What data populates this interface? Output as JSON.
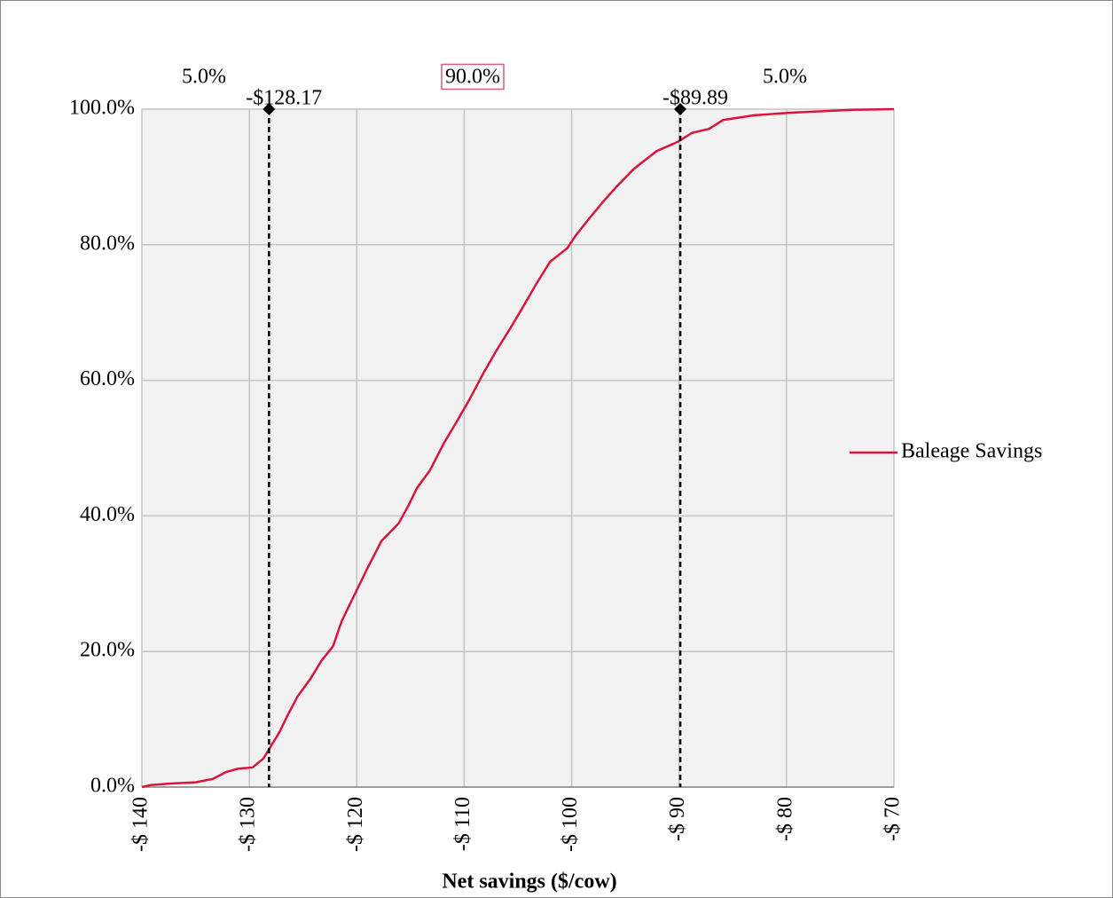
{
  "chart_data": {
    "type": "line",
    "xlabel": "Net savings ($/cow)",
    "xlim": [
      -140,
      -70
    ],
    "xticks": [
      {
        "value": -140,
        "label": "-$ 140"
      },
      {
        "value": -130,
        "label": "-$ 130"
      },
      {
        "value": -120,
        "label": "-$ 120"
      },
      {
        "value": -110,
        "label": "-$ 110"
      },
      {
        "value": -100,
        "label": "-$ 100"
      },
      {
        "value": -90,
        "label": "-$ 90"
      },
      {
        "value": -80,
        "label": "-$ 80"
      },
      {
        "value": -70,
        "label": "-$ 70"
      }
    ],
    "ylim": [
      0,
      100
    ],
    "yticks": [
      {
        "value": 0,
        "label": "0.0%"
      },
      {
        "value": 20,
        "label": "20.0%"
      },
      {
        "value": 40,
        "label": "40.0%"
      },
      {
        "value": 60,
        "label": "60.0%"
      },
      {
        "value": 80,
        "label": "80.0%"
      },
      {
        "value": 100,
        "label": "100.0%"
      }
    ],
    "grid": true,
    "legend": "right",
    "x": [
      -140,
      -139.2,
      -137.5,
      -135,
      -133.4,
      -132.2,
      -131.1,
      -129.7,
      -128.7,
      -128.2,
      -127.2,
      -126.4,
      -125.5,
      -124.3,
      -123.3,
      -122.2,
      -121.4,
      -120.6,
      -119.8,
      -119,
      -117.7,
      -116.1,
      -115.2,
      -114.4,
      -113.2,
      -111.9,
      -110.7,
      -109.5,
      -108.2,
      -107,
      -105.7,
      -104.5,
      -103.3,
      -102,
      -100.4,
      -99.6,
      -98.3,
      -97.1,
      -95.8,
      -94.2,
      -92.1,
      -90.1,
      -88.8,
      -87.2,
      -85.9,
      -83,
      -79.3,
      -73.9,
      -70
    ],
    "series": [
      {
        "name": "Baleage Savings",
        "color": "#dc143c",
        "values": [
          0,
          0.3,
          0.5,
          0.7,
          1.2,
          2.2,
          2.7,
          2.9,
          4.2,
          5.5,
          8.1,
          10.7,
          13.4,
          16,
          18.6,
          20.8,
          24.5,
          27.1,
          29.7,
          32.3,
          36.3,
          38.9,
          41.5,
          44.1,
          46.7,
          50.7,
          53.9,
          57.2,
          61.1,
          64.4,
          67.7,
          70.9,
          74.2,
          77.5,
          79.5,
          81.4,
          84,
          86.3,
          88.6,
          91.2,
          93.8,
          95.2,
          96.5,
          97.1,
          98.4,
          99.1,
          99.5,
          99.9,
          100
        ]
      }
    ],
    "markers": [
      {
        "x": -128.17,
        "label": "-$128.17"
      },
      {
        "x": -89.89,
        "label": "-$89.89"
      }
    ],
    "bands": [
      "5.0%",
      "90.0%",
      "5.0%"
    ]
  }
}
